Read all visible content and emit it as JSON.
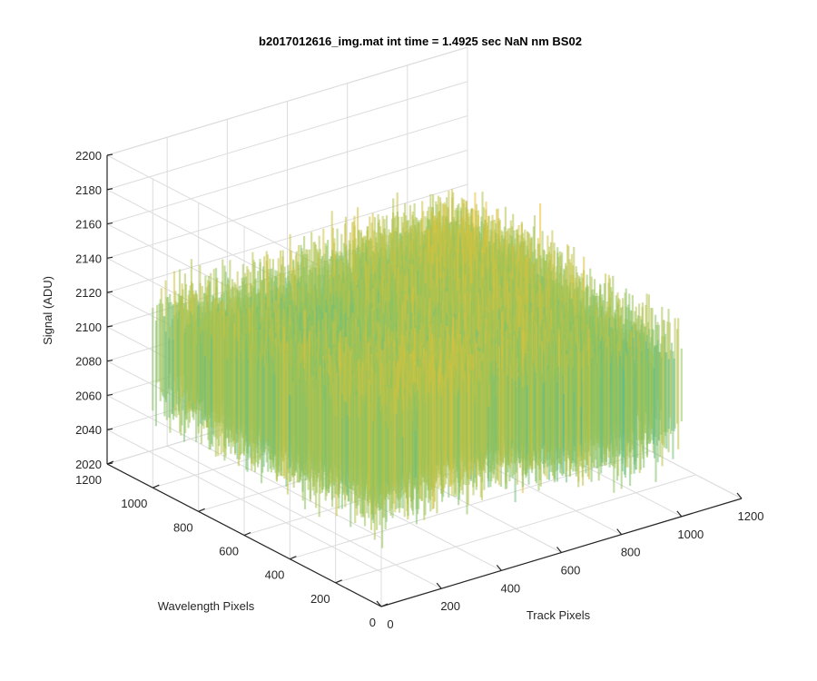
{
  "chart_data": {
    "type": "surface",
    "title": "b2017012616_img.mat int time = 1.4925 sec  NaN nm BS02",
    "xlabel": "Track Pixels",
    "ylabel": "Wavelength Pixels",
    "zlabel": "Signal (ADU)",
    "xlim": [
      0,
      1200
    ],
    "ylim": [
      0,
      1200
    ],
    "zlim": [
      2020,
      2200
    ],
    "xticks": [
      "0",
      "200",
      "400",
      "600",
      "800",
      "1000",
      "1200"
    ],
    "yticks": [
      "0",
      "200",
      "400",
      "600",
      "800",
      "1000",
      "1200"
    ],
    "zticks": [
      "2020",
      "2040",
      "2060",
      "2080",
      "2100",
      "2120",
      "2140",
      "2160",
      "2180",
      "2200"
    ],
    "grid": true,
    "colormap": "parula",
    "colors": {
      "low": "#1f8fd8",
      "mid": "#3fb9a8",
      "high": "#f0c133"
    },
    "surface": {
      "track_range": [
        0,
        1000
      ],
      "wavelength_range": [
        0,
        1000
      ],
      "mean_signal": 2100,
      "noise_band": [
        2050,
        2160
      ],
      "peak_signal": 2185,
      "min_signal": 2040
    }
  }
}
